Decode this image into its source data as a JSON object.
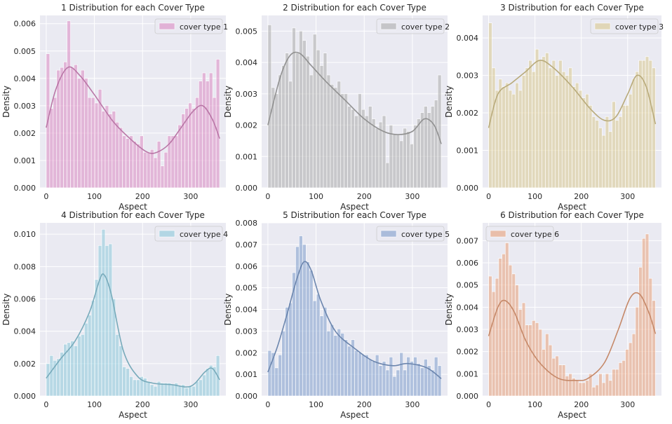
{
  "chart_data": [
    {
      "type": "histogram",
      "title": "1 Distribution for each Cover Type",
      "xlabel": "Aspect",
      "ylabel": "Density",
      "xlim": [
        -13,
        373
      ],
      "ylim": [
        0,
        0.0063
      ],
      "xticks": [
        0,
        100,
        200,
        300
      ],
      "yticks": [
        0.0,
        0.001,
        0.002,
        0.003,
        0.004,
        0.005,
        0.006
      ],
      "ytick_labels": [
        "0.000",
        "0.001",
        "0.002",
        "0.003",
        "0.004",
        "0.005",
        "0.006"
      ],
      "legend": "cover type 1",
      "legend_loc": "upper right",
      "color": "#DA8BC3",
      "bin_width": 7.2,
      "values": [
        0.0049,
        0.0029,
        0.0033,
        0.0043,
        0.0044,
        0.0046,
        0.0061,
        0.0044,
        0.0045,
        0.004,
        0.0043,
        0.004,
        0.0033,
        0.0033,
        0.0031,
        0.0036,
        0.0028,
        0.003,
        0.0027,
        0.0028,
        0.0024,
        0.0022,
        0.0019,
        0.0018,
        0.0019,
        0.0017,
        0.0016,
        0.0019,
        0.0013,
        0.0013,
        0.0014,
        0.0011,
        0.0017,
        0.0008,
        0.0013,
        0.0019,
        0.0019,
        0.0019,
        0.0023,
        0.0027,
        0.0029,
        0.0031,
        0.0029,
        0.0033,
        0.0039,
        0.0042,
        0.0039,
        0.0042,
        0.0033,
        0.0047
      ],
      "kde_x": [
        0,
        20,
        45,
        70,
        100,
        140,
        180,
        210,
        230,
        255,
        280,
        305,
        325,
        345,
        360
      ],
      "kde_y": [
        0.0022,
        0.0036,
        0.0044,
        0.0041,
        0.0034,
        0.0024,
        0.0017,
        0.0013,
        0.0013,
        0.0016,
        0.0022,
        0.0028,
        0.003,
        0.0025,
        0.0018
      ]
    },
    {
      "type": "histogram",
      "title": "2 Distribution for each Cover Type",
      "xlabel": "Aspect",
      "ylabel": "Density",
      "xlim": [
        -13,
        373
      ],
      "ylim": [
        0,
        0.0055
      ],
      "xticks": [
        0,
        100,
        200,
        300
      ],
      "yticks": [
        0.0,
        0.001,
        0.002,
        0.003,
        0.004,
        0.005
      ],
      "ytick_labels": [
        "0.000",
        "0.001",
        "0.002",
        "0.003",
        "0.004",
        "0.005"
      ],
      "legend": "cover type 2",
      "legend_loc": "upper right",
      "color": "#ABABAB",
      "bin_width": 7.2,
      "values": [
        0.0052,
        0.0032,
        0.003,
        0.0036,
        0.0039,
        0.0043,
        0.0034,
        0.0051,
        0.0043,
        0.005,
        0.0047,
        0.0042,
        0.0036,
        0.0049,
        0.0044,
        0.0039,
        0.0043,
        0.0036,
        0.0033,
        0.0032,
        0.0034,
        0.003,
        0.003,
        0.0026,
        0.0025,
        0.0023,
        0.003,
        0.0025,
        0.0023,
        0.0026,
        0.0022,
        0.0019,
        0.0021,
        0.0023,
        0.0008,
        0.002,
        0.0017,
        0.0017,
        0.0015,
        0.0019,
        0.0018,
        0.0014,
        0.002,
        0.0022,
        0.0024,
        0.0026,
        0.0024,
        0.0026,
        0.0028,
        0.0036
      ],
      "kde_x": [
        0,
        25,
        45,
        65,
        90,
        120,
        160,
        200,
        240,
        270,
        300,
        325,
        345,
        360
      ],
      "kde_y": [
        0.002,
        0.0035,
        0.0042,
        0.0043,
        0.0039,
        0.0034,
        0.0028,
        0.0022,
        0.0018,
        0.0017,
        0.0018,
        0.0022,
        0.002,
        0.0014
      ]
    },
    {
      "type": "histogram",
      "title": "3 Distribution for each Cover Type",
      "xlabel": "Aspect",
      "ylabel": "Density",
      "xlim": [
        -13,
        373
      ],
      "ylim": [
        0,
        0.0046
      ],
      "xticks": [
        0,
        100,
        200,
        300
      ],
      "yticks": [
        0.0,
        0.001,
        0.002,
        0.003,
        0.004
      ],
      "ytick_labels": [
        "0.000",
        "0.001",
        "0.002",
        "0.003",
        "0.004"
      ],
      "legend": "cover type 3",
      "legend_loc": "upper right",
      "color": "#D8C88F",
      "bin_width": 7.2,
      "values": [
        0.0044,
        0.0032,
        0.0026,
        0.0029,
        0.0027,
        0.0028,
        0.0026,
        0.0025,
        0.0028,
        0.0026,
        0.003,
        0.0032,
        0.0034,
        0.0031,
        0.0037,
        0.0034,
        0.0035,
        0.0036,
        0.0032,
        0.0034,
        0.003,
        0.0034,
        0.0031,
        0.003,
        0.0032,
        0.0027,
        0.0028,
        0.0026,
        0.0024,
        0.0025,
        0.0022,
        0.0019,
        0.0018,
        0.0016,
        0.0014,
        0.0019,
        0.0015,
        0.0023,
        0.0018,
        0.0019,
        0.0022,
        0.0022,
        0.0025,
        0.0029,
        0.0031,
        0.0034,
        0.0034,
        0.0035,
        0.0034,
        0.0032
      ],
      "kde_x": [
        0,
        20,
        50,
        80,
        110,
        140,
        180,
        220,
        250,
        275,
        300,
        320,
        340,
        360
      ],
      "kde_y": [
        0.0016,
        0.0025,
        0.0028,
        0.0031,
        0.0034,
        0.0032,
        0.0027,
        0.0021,
        0.0018,
        0.0019,
        0.0025,
        0.003,
        0.0027,
        0.0017
      ]
    },
    {
      "type": "histogram",
      "title": "4 Distribution for each Cover Type",
      "xlabel": "Aspect",
      "ylabel": "Density",
      "xlim": [
        -13,
        373
      ],
      "ylim": [
        0,
        0.0107
      ],
      "xticks": [
        0,
        100,
        200,
        300
      ],
      "yticks": [
        0.0,
        0.002,
        0.004,
        0.006,
        0.008,
        0.01
      ],
      "ytick_labels": [
        "0.000",
        "0.002",
        "0.004",
        "0.006",
        "0.008",
        "0.010"
      ],
      "legend": "cover type 4",
      "legend_loc": "upper right",
      "color": "#8CC8DB",
      "bin_width": 7.2,
      "values": [
        0.002,
        0.0025,
        0.0022,
        0.0023,
        0.0027,
        0.0032,
        0.0033,
        0.0034,
        0.0031,
        0.0037,
        0.0038,
        0.0045,
        0.005,
        0.0059,
        0.0072,
        0.0093,
        0.0103,
        0.0093,
        0.0094,
        0.006,
        0.0038,
        0.0031,
        0.0018,
        0.0017,
        0.0012,
        0.001,
        0.001,
        0.0012,
        0.0011,
        0.0009,
        0.0007,
        0.0006,
        0.0009,
        0.0008,
        0.0008,
        0.0008,
        0.0007,
        0.0008,
        0.0006,
        0.0007,
        0.0005,
        0.0006,
        0.0006,
        0.0009,
        0.001,
        0.0013,
        0.0017,
        0.0019,
        0.0018,
        0.0025
      ],
      "kde_x": [
        0,
        30,
        60,
        90,
        110,
        120,
        135,
        160,
        190,
        220,
        260,
        300,
        330,
        345,
        360
      ],
      "kde_y": [
        0.0011,
        0.0023,
        0.0034,
        0.0052,
        0.0071,
        0.0075,
        0.0063,
        0.0028,
        0.0012,
        0.0008,
        0.0007,
        0.0006,
        0.0015,
        0.0017,
        0.001
      ]
    },
    {
      "type": "histogram",
      "title": "5 Distribution for each Cover Type",
      "xlabel": "Aspect",
      "ylabel": "Density",
      "xlim": [
        -13,
        373
      ],
      "ylim": [
        0,
        0.008
      ],
      "xticks": [
        0,
        100,
        200,
        300
      ],
      "yticks": [
        0.0,
        0.001,
        0.002,
        0.003,
        0.004,
        0.005,
        0.006,
        0.007,
        0.008
      ],
      "ytick_labels": [
        "0.000",
        "0.001",
        "0.002",
        "0.003",
        "0.004",
        "0.005",
        "0.006",
        "0.007",
        "0.008"
      ],
      "legend": "cover type 5",
      "legend_loc": "upper right",
      "color": "#7E9CCC",
      "bin_width": 7.2,
      "values": [
        0.0021,
        0.002,
        0.0013,
        0.0019,
        0.003,
        0.0041,
        0.0043,
        0.0057,
        0.0069,
        0.0074,
        0.007,
        0.0062,
        0.0058,
        0.0044,
        0.0047,
        0.0037,
        0.0041,
        0.003,
        0.0033,
        0.0028,
        0.0031,
        0.0029,
        0.0026,
        0.0023,
        0.0026,
        0.0021,
        0.002,
        0.0019,
        0.0019,
        0.0017,
        0.0016,
        0.0019,
        0.0014,
        0.0016,
        0.0012,
        0.0018,
        0.0009,
        0.0012,
        0.002,
        0.0012,
        0.0018,
        0.0016,
        0.0018,
        0.0015,
        0.0013,
        0.0017,
        0.0014,
        0.0012,
        0.0018,
        0.0014
      ],
      "kde_x": [
        0,
        20,
        40,
        60,
        75,
        90,
        110,
        140,
        180,
        220,
        260,
        290,
        330,
        360
      ],
      "kde_y": [
        0.0011,
        0.0023,
        0.0038,
        0.0054,
        0.0062,
        0.0058,
        0.0044,
        0.003,
        0.0022,
        0.0016,
        0.0014,
        0.0015,
        0.0013,
        0.0008
      ]
    },
    {
      "type": "histogram",
      "title": "6 Distribution for each Cover Type",
      "xlabel": "Aspect",
      "ylabel": "Density",
      "xlim": [
        -13,
        373
      ],
      "ylim": [
        0,
        0.0078
      ],
      "xticks": [
        0,
        100,
        200,
        300
      ],
      "yticks": [
        0.0,
        0.001,
        0.002,
        0.003,
        0.004,
        0.005,
        0.006,
        0.007
      ],
      "ytick_labels": [
        "0.000",
        "0.001",
        "0.002",
        "0.003",
        "0.004",
        "0.005",
        "0.006",
        "0.007"
      ],
      "legend": "cover type 6",
      "legend_loc": "upper left",
      "color": "#E8A07A",
      "bin_width": 7.2,
      "values": [
        0.0054,
        0.0047,
        0.0053,
        0.0062,
        0.0064,
        0.0069,
        0.0059,
        0.0055,
        0.005,
        0.0039,
        0.0042,
        0.0032,
        0.0032,
        0.0034,
        0.0033,
        0.003,
        0.0021,
        0.0028,
        0.0023,
        0.0017,
        0.0018,
        0.0014,
        0.0014,
        0.0009,
        0.001,
        0.0008,
        0.0007,
        0.0006,
        0.0006,
        0.0007,
        0.001,
        0.0004,
        0.0005,
        0.001,
        0.0006,
        0.001,
        0.0007,
        0.0012,
        0.0012,
        0.0015,
        0.0016,
        0.0021,
        0.0024,
        0.0028,
        0.004,
        0.0058,
        0.0071,
        0.0073,
        0.0053,
        0.0043
      ],
      "kde_x": [
        0,
        20,
        35,
        55,
        80,
        110,
        150,
        190,
        215,
        250,
        280,
        305,
        325,
        345,
        360
      ],
      "kde_y": [
        0.0027,
        0.004,
        0.0043,
        0.0038,
        0.0025,
        0.0015,
        0.0008,
        0.0007,
        0.0008,
        0.0015,
        0.003,
        0.0044,
        0.0046,
        0.0038,
        0.0028
      ]
    }
  ]
}
